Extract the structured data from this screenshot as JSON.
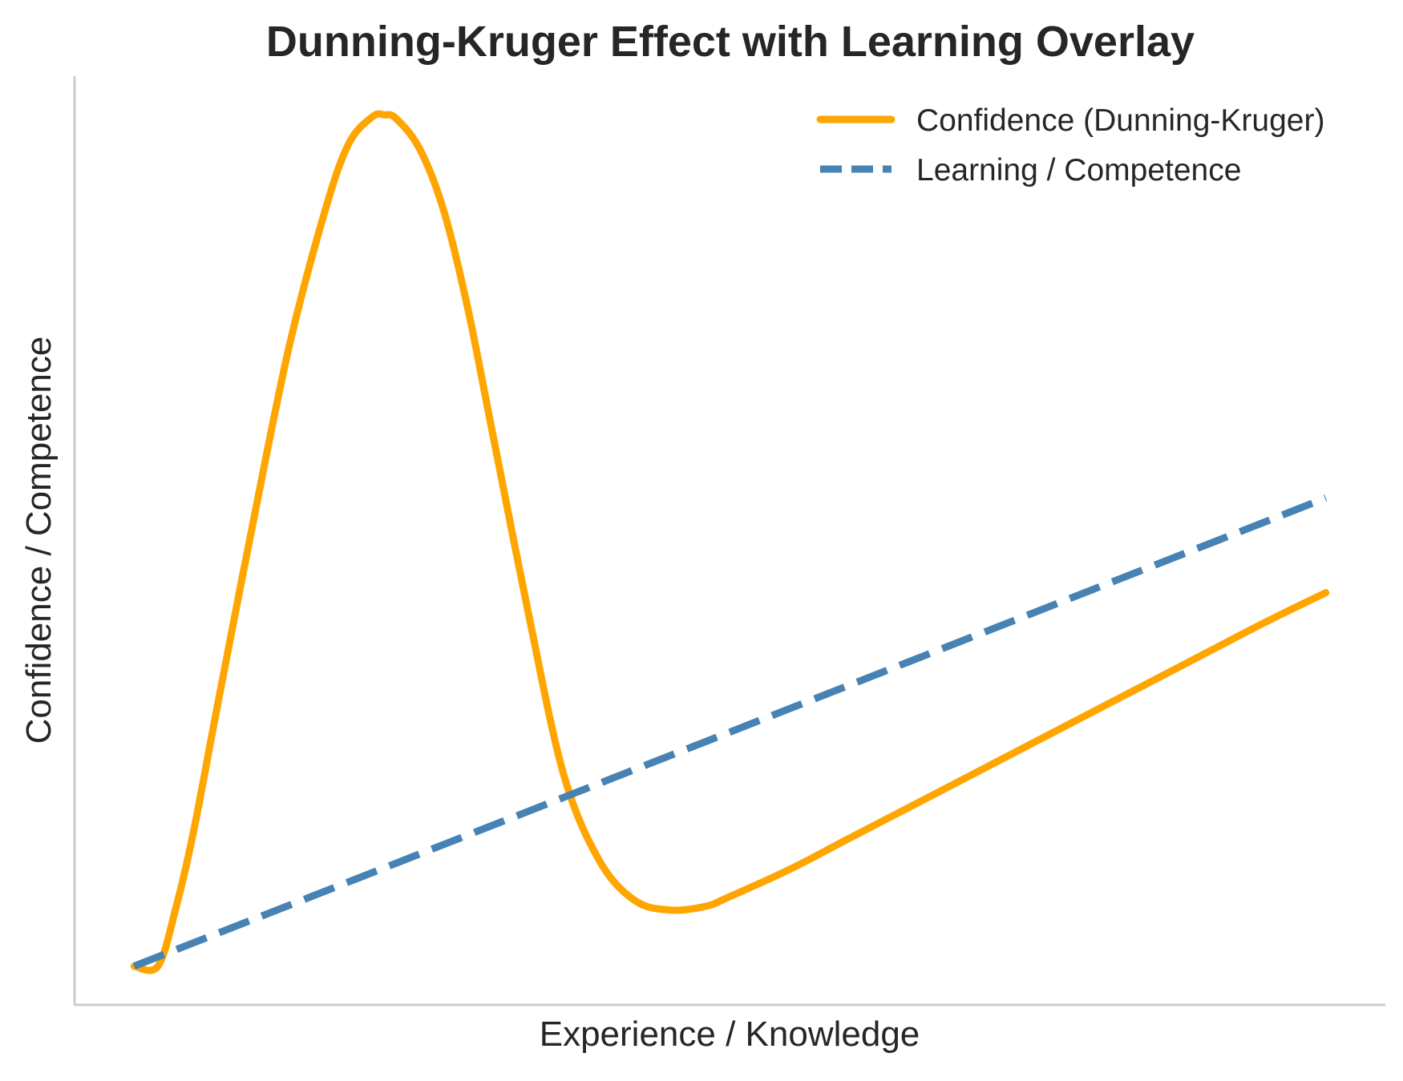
{
  "chart_data": {
    "type": "line",
    "title": "Dunning-Kruger Effect with Learning Overlay",
    "xlabel": "Experience / Knowledge",
    "ylabel": "Confidence / Competence",
    "xlim": [
      -0.5,
      10.5
    ],
    "ylim": [
      -0.2,
      4.6
    ],
    "grid": false,
    "legend_position": "top-right",
    "x_ticks_shown": false,
    "y_ticks_shown": false,
    "series": [
      {
        "name": "Confidence (Dunning-Kruger)",
        "style": "solid",
        "color": "#FFA500",
        "x": [
          0,
          0.2,
          0.35,
          0.5,
          0.7,
          1.0,
          1.3,
          1.6,
          1.8,
          2.0,
          2.1,
          2.2,
          2.4,
          2.6,
          2.8,
          3.0,
          3.3,
          3.6,
          3.9,
          4.2,
          4.5,
          4.8,
          5.0,
          5.5,
          6.0,
          6.5,
          7.0,
          7.5,
          8.0,
          8.5,
          9.0,
          9.5,
          10.0
        ],
        "y": [
          0,
          0,
          0.3,
          0.7,
          1.35,
          2.3,
          3.2,
          3.9,
          4.25,
          4.39,
          4.4,
          4.38,
          4.22,
          3.9,
          3.4,
          2.78,
          1.85,
          1.0,
          0.55,
          0.34,
          0.29,
          0.31,
          0.36,
          0.5,
          0.66,
          0.82,
          0.98,
          1.14,
          1.3,
          1.46,
          1.62,
          1.78,
          1.93
        ]
      },
      {
        "name": "Learning / Competence",
        "style": "dashed",
        "color": "#4682B4",
        "x": [
          0,
          10
        ],
        "y": [
          0,
          2.42
        ]
      }
    ]
  }
}
